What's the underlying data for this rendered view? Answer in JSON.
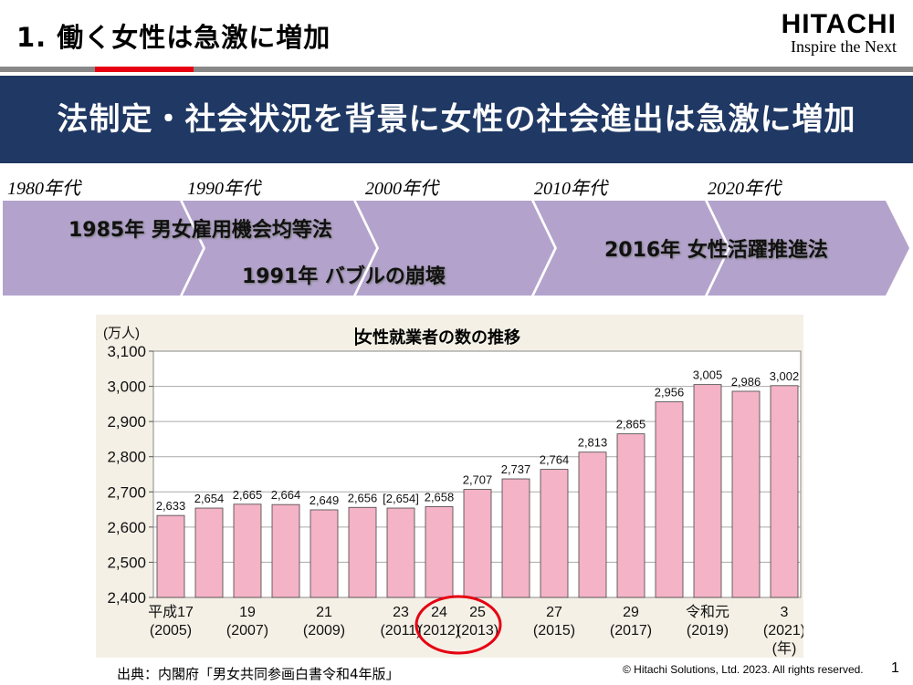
{
  "header": {
    "title": "1. 働く女性は急激に増加",
    "logo_name": "HITACHI",
    "logo_tagline": "Inspire the Next"
  },
  "banner": {
    "text": "法制定・社会状況を背景に女性の社会進出は急激に増加"
  },
  "timeline": {
    "decades": [
      "1980年代",
      "1990年代",
      "2000年代",
      "2010年代",
      "2020年代"
    ],
    "events": [
      "1985年 男女雇用機会均等法",
      "1991年 バブルの崩壊",
      "2016年 女性活躍推進法"
    ]
  },
  "colors": {
    "banner": "#1f3864",
    "accent_red": "#e60012",
    "arrow": "#b3a3cc",
    "bar": "#f4b3c6",
    "circle": "#e60012"
  },
  "chart_data": {
    "type": "bar",
    "title": "女性就業者の数の推移",
    "ylabel": "(万人)",
    "xlabel": "(年)",
    "ylim": [
      2400,
      3100
    ],
    "yticks": [
      "2,400",
      "2,500",
      "2,600",
      "2,700",
      "2,800",
      "2,900",
      "3,000",
      "3,100"
    ],
    "values": [
      2633,
      2654,
      2665,
      2664,
      2649,
      2656,
      2654,
      2658,
      2707,
      2737,
      2764,
      2813,
      2865,
      2956,
      3005,
      2986,
      3002
    ],
    "data_labels": [
      "2,633",
      "2,654",
      "2,665",
      "2,664",
      "2,649",
      "2,656",
      "[2,654]",
      "2,658",
      "2,707",
      "2,737",
      "2,764",
      "2,813",
      "2,865",
      "2,956",
      "3,005",
      "2,986",
      "3,002"
    ],
    "category_labels": [
      {
        "bar": 0,
        "line1": "平成17",
        "line2": "(2005)"
      },
      {
        "bar": 2,
        "line1": "19",
        "line2": "(2007)"
      },
      {
        "bar": 4,
        "line1": "21",
        "line2": "(2009)"
      },
      {
        "bar": 6,
        "line1": "23",
        "line2": "(2011)"
      },
      {
        "bar": 7,
        "line1": "24",
        "line2": "(2012)"
      },
      {
        "bar": 8,
        "line1": "25",
        "line2": "(2013)"
      },
      {
        "bar": 10,
        "line1": "27",
        "line2": "(2015)"
      },
      {
        "bar": 12,
        "line1": "29",
        "line2": "(2017)"
      },
      {
        "bar": 14,
        "line1": "令和元",
        "line2": "(2019)"
      },
      {
        "bar": 16,
        "line1": "3",
        "line2": "(2021)"
      }
    ],
    "highlight_bars": [
      7,
      8
    ],
    "grid": true,
    "legend": "none"
  },
  "footer": {
    "source": "出典：内閣府「男女共同参画白書令和4年版」",
    "copyright": "© Hitachi Solutions, Ltd. 2023. All rights reserved.",
    "page": "1"
  }
}
